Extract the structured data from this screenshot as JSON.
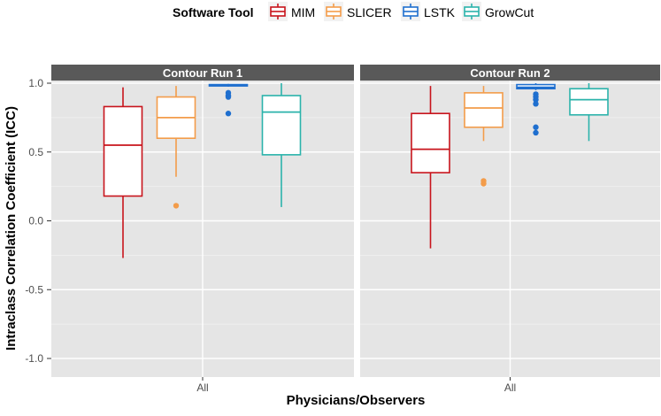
{
  "chart_data": {
    "type": "boxplot",
    "title": "",
    "xlabel": "Physicians/Observers",
    "ylabel": "Intraclass Correlation Coefficient (ICC)",
    "ylim": [
      -1.1,
      1.1
    ],
    "yticks": [
      -1.0,
      -0.5,
      0.0,
      0.5,
      1.0
    ],
    "ytick_labels": [
      "-1.0",
      "-0.5",
      "0.0",
      "0.5",
      "1.0"
    ],
    "grid": true,
    "legend": {
      "title": "Software Tool",
      "placement": "top",
      "entries": [
        "MIM",
        "SLICER",
        "LSTK",
        "GrowCut"
      ]
    },
    "colors": {
      "MIM": "#c8141c",
      "SLICER": "#f39c4a",
      "LSTK": "#1f6fcf",
      "GrowCut": "#2bb3ab"
    },
    "panels": [
      {
        "strip": "Contour Run 1",
        "category": "All",
        "series": [
          {
            "name": "MIM",
            "min": -0.27,
            "q1": 0.18,
            "median": 0.55,
            "q3": 0.83,
            "max": 0.97,
            "outliers": []
          },
          {
            "name": "SLICER",
            "min": 0.32,
            "q1": 0.6,
            "median": 0.75,
            "q3": 0.9,
            "max": 0.98,
            "outliers": [
              0.11
            ]
          },
          {
            "name": "LSTK",
            "min": 0.975,
            "q1": 0.98,
            "median": 0.985,
            "q3": 0.99,
            "max": 0.995,
            "outliers": [
              0.93,
              0.91,
              0.9,
              0.78
            ]
          },
          {
            "name": "GrowCut",
            "min": 0.1,
            "q1": 0.48,
            "median": 0.79,
            "q3": 0.91,
            "max": 1.0,
            "outliers": []
          }
        ]
      },
      {
        "strip": "Contour Run 2",
        "category": "All",
        "series": [
          {
            "name": "MIM",
            "min": -0.2,
            "q1": 0.35,
            "median": 0.52,
            "q3": 0.78,
            "max": 0.98,
            "outliers": []
          },
          {
            "name": "SLICER",
            "min": 0.58,
            "q1": 0.68,
            "median": 0.82,
            "q3": 0.93,
            "max": 0.98,
            "outliers": [
              0.29,
              0.27
            ]
          },
          {
            "name": "LSTK",
            "min": 0.95,
            "q1": 0.96,
            "median": 0.97,
            "q3": 0.99,
            "max": 1.0,
            "outliers": [
              0.92,
              0.9,
              0.88,
              0.85,
              0.68,
              0.64
            ]
          },
          {
            "name": "GrowCut",
            "min": 0.58,
            "q1": 0.77,
            "median": 0.88,
            "q3": 0.96,
            "max": 1.0,
            "outliers": []
          }
        ]
      }
    ]
  }
}
